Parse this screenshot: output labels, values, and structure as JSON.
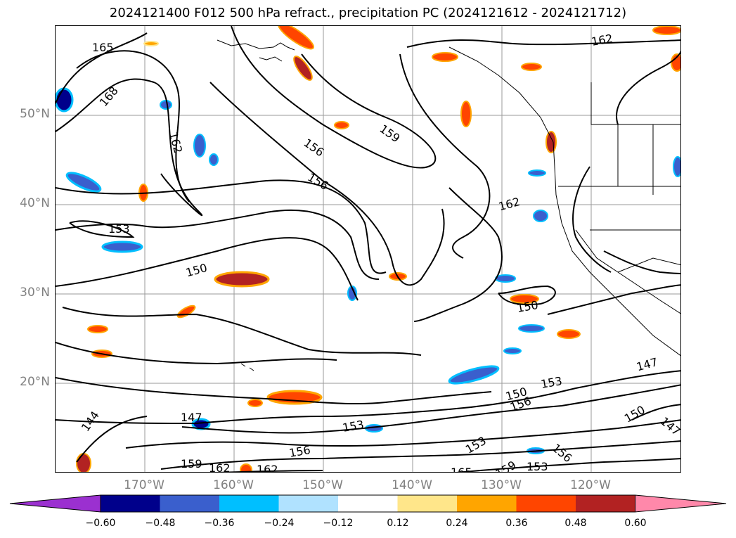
{
  "title": "2024121400 F012 500 hPa refract., precipitation PC (2024121612 - 2024121712)",
  "lat_labels": [
    "50°N",
    "40°N",
    "30°N",
    "20°N"
  ],
  "lon_labels": [
    "170°W",
    "160°W",
    "150°W",
    "140°W",
    "130°W",
    "120°W"
  ],
  "colorbar": {
    "ticks": [
      "−0.60",
      "−0.48",
      "−0.36",
      "−0.24",
      "−0.12",
      "0.12",
      "0.24",
      "0.36",
      "0.48",
      "0.60"
    ],
    "colors": [
      "#9b30d0",
      "#00008b",
      "#3a5fcd",
      "#00bfff",
      "#b0e2ff",
      "#ffffff",
      "#ffe68a",
      "#ffa500",
      "#ff4500",
      "#b22222",
      "#ff88aa"
    ]
  },
  "contour_labels": [
    "165",
    "168",
    "162",
    "156",
    "159",
    "156",
    "162",
    "153",
    "150",
    "150",
    "162",
    "147",
    "153",
    "150",
    "156",
    "150",
    "144",
    "147",
    "153",
    "156",
    "153",
    "159",
    "153",
    "156",
    "159",
    "162",
    "165",
    "162",
    "147"
  ]
}
